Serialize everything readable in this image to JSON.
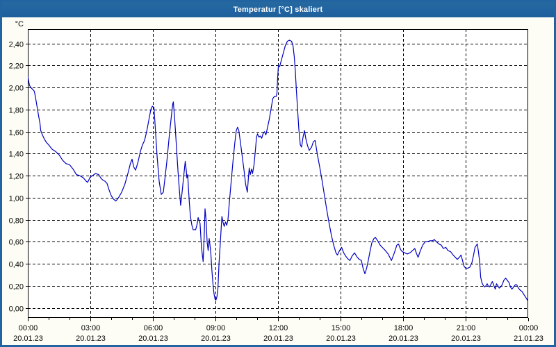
{
  "window": {
    "title": "Temperatur [°C] skaliert"
  },
  "colors": {
    "titlebar": "#2164a1",
    "window_border": "#2164a1",
    "content_background": "#fdfdf5",
    "plot_background": "#ffffff",
    "grid": "#000000",
    "axis": "#000000",
    "tick_text": "#000000",
    "line": "#0000c0"
  },
  "chart_data": {
    "type": "line",
    "title": "Temperatur [°C] skaliert",
    "ylabel": "°C",
    "xlabel": "",
    "grid": "dashed",
    "legend": "none",
    "ylim": [
      -0.09,
      2.53
    ],
    "xlim_hours": [
      0,
      24
    ],
    "y_ticks": [
      {
        "value": 0.0,
        "label": "0,00"
      },
      {
        "value": 0.2,
        "label": "0,20"
      },
      {
        "value": 0.4,
        "label": "0,40"
      },
      {
        "value": 0.6,
        "label": "0,60"
      },
      {
        "value": 0.8,
        "label": "0,80"
      },
      {
        "value": 1.0,
        "label": "1,00"
      },
      {
        "value": 1.2,
        "label": "1,20"
      },
      {
        "value": 1.4,
        "label": "1,40"
      },
      {
        "value": 1.6,
        "label": "1,60"
      },
      {
        "value": 1.8,
        "label": "1,80"
      },
      {
        "value": 2.0,
        "label": "2,00"
      },
      {
        "value": 2.2,
        "label": "2,20"
      },
      {
        "value": 2.4,
        "label": "2,40"
      }
    ],
    "x_ticks": [
      {
        "hour": 0,
        "time": "00:00",
        "date": "20.01.23"
      },
      {
        "hour": 3,
        "time": "03:00",
        "date": "20.01.23"
      },
      {
        "hour": 6,
        "time": "06:00",
        "date": "20.01.23"
      },
      {
        "hour": 9,
        "time": "09:00",
        "date": "20.01.23"
      },
      {
        "hour": 12,
        "time": "12:00",
        "date": "20.01.23"
      },
      {
        "hour": 15,
        "time": "15:00",
        "date": "20.01.23"
      },
      {
        "hour": 18,
        "time": "18:00",
        "date": "20.01.23"
      },
      {
        "hour": 21,
        "time": "21:00",
        "date": "20.01.23"
      },
      {
        "hour": 24,
        "time": "00:00",
        "date": "21.01.23"
      }
    ],
    "minor_x_tick_every_hours": 1,
    "series": [
      {
        "name": "Temperatur [°C] skaliert",
        "unit": "°C",
        "color": "#0000c0",
        "points": [
          [
            0.0,
            2.1
          ],
          [
            0.05,
            2.05
          ],
          [
            0.08,
            2.02
          ],
          [
            0.15,
            2.0
          ],
          [
            0.25,
            1.98
          ],
          [
            0.3,
            1.97
          ],
          [
            0.33,
            1.95
          ],
          [
            0.37,
            1.91
          ],
          [
            0.45,
            1.82
          ],
          [
            0.52,
            1.74
          ],
          [
            0.58,
            1.68
          ],
          [
            0.62,
            1.61
          ],
          [
            0.7,
            1.57
          ],
          [
            0.8,
            1.53
          ],
          [
            0.9,
            1.5
          ],
          [
            1.0,
            1.48
          ],
          [
            1.17,
            1.44
          ],
          [
            1.33,
            1.42
          ],
          [
            1.5,
            1.39
          ],
          [
            1.67,
            1.34
          ],
          [
            1.83,
            1.31
          ],
          [
            2.0,
            1.3
          ],
          [
            2.17,
            1.26
          ],
          [
            2.33,
            1.21
          ],
          [
            2.5,
            1.2
          ],
          [
            2.67,
            1.18
          ],
          [
            2.8,
            1.15
          ],
          [
            2.87,
            1.14
          ],
          [
            3.0,
            1.19
          ],
          [
            3.1,
            1.2
          ],
          [
            3.25,
            1.22
          ],
          [
            3.4,
            1.21
          ],
          [
            3.5,
            1.18
          ],
          [
            3.6,
            1.16
          ],
          [
            3.7,
            1.15
          ],
          [
            3.8,
            1.13
          ],
          [
            3.9,
            1.07
          ],
          [
            4.0,
            1.02
          ],
          [
            4.1,
            0.99
          ],
          [
            4.22,
            0.97
          ],
          [
            4.35,
            1.0
          ],
          [
            4.5,
            1.05
          ],
          [
            4.65,
            1.12
          ],
          [
            4.8,
            1.22
          ],
          [
            4.92,
            1.31
          ],
          [
            5.0,
            1.35
          ],
          [
            5.08,
            1.28
          ],
          [
            5.17,
            1.25
          ],
          [
            5.28,
            1.32
          ],
          [
            5.4,
            1.42
          ],
          [
            5.5,
            1.48
          ],
          [
            5.6,
            1.52
          ],
          [
            5.7,
            1.6
          ],
          [
            5.8,
            1.7
          ],
          [
            5.9,
            1.8
          ],
          [
            5.97,
            1.83
          ],
          [
            6.05,
            1.82
          ],
          [
            6.12,
            1.62
          ],
          [
            6.2,
            1.38
          ],
          [
            6.3,
            1.15
          ],
          [
            6.4,
            1.03
          ],
          [
            6.5,
            1.05
          ],
          [
            6.58,
            1.18
          ],
          [
            6.67,
            1.33
          ],
          [
            6.78,
            1.55
          ],
          [
            6.88,
            1.73
          ],
          [
            6.95,
            1.85
          ],
          [
            6.98,
            1.87
          ],
          [
            7.05,
            1.7
          ],
          [
            7.12,
            1.49
          ],
          [
            7.2,
            1.25
          ],
          [
            7.27,
            1.07
          ],
          [
            7.33,
            0.93
          ],
          [
            7.4,
            1.05
          ],
          [
            7.48,
            1.2
          ],
          [
            7.55,
            1.33
          ],
          [
            7.6,
            1.25
          ],
          [
            7.63,
            1.18
          ],
          [
            7.67,
            1.21
          ],
          [
            7.7,
            1.1
          ],
          [
            7.75,
            0.95
          ],
          [
            7.8,
            0.83
          ],
          [
            7.87,
            0.75
          ],
          [
            7.93,
            0.71
          ],
          [
            8.05,
            0.71
          ],
          [
            8.12,
            0.76
          ],
          [
            8.17,
            0.82
          ],
          [
            8.22,
            0.79
          ],
          [
            8.26,
            0.77
          ],
          [
            8.33,
            0.55
          ],
          [
            8.41,
            0.42
          ],
          [
            8.46,
            0.65
          ],
          [
            8.5,
            0.9
          ],
          [
            8.55,
            0.8
          ],
          [
            8.6,
            0.6
          ],
          [
            8.65,
            0.52
          ],
          [
            8.7,
            0.63
          ],
          [
            8.75,
            0.55
          ],
          [
            8.78,
            0.49
          ],
          [
            8.83,
            0.34
          ],
          [
            8.88,
            0.22
          ],
          [
            8.93,
            0.13
          ],
          [
            8.98,
            0.08
          ],
          [
            9.02,
            0.07
          ],
          [
            9.07,
            0.1
          ],
          [
            9.12,
            0.18
          ],
          [
            9.17,
            0.4
          ],
          [
            9.23,
            0.58
          ],
          [
            9.28,
            0.74
          ],
          [
            9.31,
            0.83
          ],
          [
            9.36,
            0.78
          ],
          [
            9.42,
            0.74
          ],
          [
            9.48,
            0.78
          ],
          [
            9.54,
            0.75
          ],
          [
            9.6,
            0.8
          ],
          [
            9.65,
            0.92
          ],
          [
            9.7,
            1.03
          ],
          [
            9.77,
            1.18
          ],
          [
            9.85,
            1.35
          ],
          [
            9.93,
            1.5
          ],
          [
            10.0,
            1.61
          ],
          [
            10.06,
            1.64
          ],
          [
            10.12,
            1.61
          ],
          [
            10.2,
            1.5
          ],
          [
            10.28,
            1.38
          ],
          [
            10.37,
            1.25
          ],
          [
            10.45,
            1.12
          ],
          [
            10.53,
            1.05
          ],
          [
            10.58,
            1.18
          ],
          [
            10.62,
            1.27
          ],
          [
            10.67,
            1.21
          ],
          [
            10.73,
            1.26
          ],
          [
            10.78,
            1.22
          ],
          [
            10.85,
            1.3
          ],
          [
            10.92,
            1.44
          ],
          [
            10.97,
            1.55
          ],
          [
            11.02,
            1.58
          ],
          [
            11.08,
            1.55
          ],
          [
            11.15,
            1.56
          ],
          [
            11.22,
            1.54
          ],
          [
            11.28,
            1.58
          ],
          [
            11.35,
            1.6
          ],
          [
            11.42,
            1.57
          ],
          [
            11.5,
            1.64
          ],
          [
            11.58,
            1.71
          ],
          [
            11.67,
            1.81
          ],
          [
            11.75,
            1.9
          ],
          [
            11.83,
            1.92
          ],
          [
            11.92,
            1.92
          ],
          [
            11.95,
            1.95
          ],
          [
            11.98,
            2.08
          ],
          [
            12.02,
            2.2
          ],
          [
            12.08,
            2.19
          ],
          [
            12.15,
            2.24
          ],
          [
            12.25,
            2.31
          ],
          [
            12.35,
            2.38
          ],
          [
            12.45,
            2.42
          ],
          [
            12.55,
            2.43
          ],
          [
            12.65,
            2.42
          ],
          [
            12.72,
            2.38
          ],
          [
            12.78,
            2.28
          ],
          [
            12.83,
            2.15
          ],
          [
            12.88,
            1.98
          ],
          [
            12.93,
            1.83
          ],
          [
            13.0,
            1.62
          ],
          [
            13.07,
            1.48
          ],
          [
            13.13,
            1.46
          ],
          [
            13.2,
            1.55
          ],
          [
            13.27,
            1.61
          ],
          [
            13.33,
            1.54
          ],
          [
            13.42,
            1.47
          ],
          [
            13.5,
            1.43
          ],
          [
            13.61,
            1.46
          ],
          [
            13.7,
            1.51
          ],
          [
            13.78,
            1.52
          ],
          [
            13.89,
            1.39
          ],
          [
            14.0,
            1.28
          ],
          [
            14.11,
            1.16
          ],
          [
            14.22,
            1.03
          ],
          [
            14.33,
            0.9
          ],
          [
            14.44,
            0.78
          ],
          [
            14.56,
            0.66
          ],
          [
            14.67,
            0.57
          ],
          [
            14.78,
            0.5
          ],
          [
            14.85,
            0.48
          ],
          [
            14.95,
            0.52
          ],
          [
            15.05,
            0.55
          ],
          [
            15.15,
            0.5
          ],
          [
            15.25,
            0.47
          ],
          [
            15.33,
            0.45
          ],
          [
            15.45,
            0.43
          ],
          [
            15.55,
            0.47
          ],
          [
            15.67,
            0.5
          ],
          [
            15.8,
            0.46
          ],
          [
            15.9,
            0.44
          ],
          [
            16.0,
            0.43
          ],
          [
            16.08,
            0.36
          ],
          [
            16.17,
            0.31
          ],
          [
            16.25,
            0.36
          ],
          [
            16.33,
            0.43
          ],
          [
            16.42,
            0.52
          ],
          [
            16.5,
            0.59
          ],
          [
            16.6,
            0.63
          ],
          [
            16.67,
            0.64
          ],
          [
            16.78,
            0.61
          ],
          [
            16.9,
            0.57
          ],
          [
            17.0,
            0.55
          ],
          [
            17.15,
            0.52
          ],
          [
            17.28,
            0.49
          ],
          [
            17.44,
            0.43
          ],
          [
            17.58,
            0.5
          ],
          [
            17.7,
            0.57
          ],
          [
            17.78,
            0.58
          ],
          [
            17.88,
            0.53
          ],
          [
            17.97,
            0.51
          ],
          [
            18.08,
            0.5
          ],
          [
            18.2,
            0.49
          ],
          [
            18.33,
            0.5
          ],
          [
            18.45,
            0.52
          ],
          [
            18.56,
            0.54
          ],
          [
            18.65,
            0.49
          ],
          [
            18.72,
            0.46
          ],
          [
            18.83,
            0.52
          ],
          [
            18.94,
            0.57
          ],
          [
            19.06,
            0.6
          ],
          [
            19.17,
            0.6
          ],
          [
            19.28,
            0.61
          ],
          [
            19.4,
            0.61
          ],
          [
            19.5,
            0.62
          ],
          [
            19.6,
            0.6
          ],
          [
            19.72,
            0.58
          ],
          [
            19.83,
            0.57
          ],
          [
            19.93,
            0.54
          ],
          [
            20.05,
            0.55
          ],
          [
            20.15,
            0.52
          ],
          [
            20.28,
            0.51
          ],
          [
            20.4,
            0.48
          ],
          [
            20.5,
            0.46
          ],
          [
            20.6,
            0.44
          ],
          [
            20.7,
            0.46
          ],
          [
            20.78,
            0.48
          ],
          [
            20.85,
            0.43
          ],
          [
            20.92,
            0.38
          ],
          [
            21.0,
            0.36
          ],
          [
            21.1,
            0.36
          ],
          [
            21.2,
            0.37
          ],
          [
            21.3,
            0.41
          ],
          [
            21.38,
            0.48
          ],
          [
            21.45,
            0.55
          ],
          [
            21.52,
            0.57
          ],
          [
            21.56,
            0.58
          ],
          [
            21.62,
            0.5
          ],
          [
            21.67,
            0.42
          ],
          [
            21.72,
            0.28
          ],
          [
            21.78,
            0.23
          ],
          [
            21.83,
            0.21
          ],
          [
            21.9,
            0.19
          ],
          [
            21.97,
            0.2
          ],
          [
            22.03,
            0.22
          ],
          [
            22.08,
            0.2
          ],
          [
            22.14,
            0.19
          ],
          [
            22.2,
            0.21
          ],
          [
            22.28,
            0.24
          ],
          [
            22.36,
            0.2
          ],
          [
            22.42,
            0.17
          ],
          [
            22.48,
            0.22
          ],
          [
            22.55,
            0.2
          ],
          [
            22.61,
            0.18
          ],
          [
            22.68,
            0.19
          ],
          [
            22.75,
            0.21
          ],
          [
            22.83,
            0.25
          ],
          [
            22.92,
            0.27
          ],
          [
            23.0,
            0.25
          ],
          [
            23.08,
            0.23
          ],
          [
            23.15,
            0.19
          ],
          [
            23.22,
            0.17
          ],
          [
            23.3,
            0.19
          ],
          [
            23.38,
            0.21
          ],
          [
            23.45,
            0.21
          ],
          [
            23.53,
            0.18
          ],
          [
            23.62,
            0.16
          ],
          [
            23.7,
            0.15
          ],
          [
            23.8,
            0.12
          ],
          [
            23.9,
            0.09
          ],
          [
            24.0,
            0.06
          ]
        ]
      }
    ]
  }
}
